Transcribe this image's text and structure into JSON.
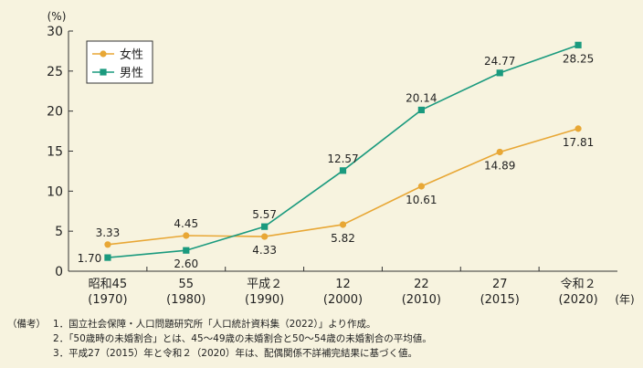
{
  "chart_data": {
    "type": "line",
    "y_unit": "(%)",
    "x_unit": "(年)",
    "ylim": [
      0,
      30
    ],
    "yticks": [
      0,
      5,
      10,
      15,
      20,
      25,
      30
    ],
    "grid": false,
    "legend_position": "top-left",
    "categories": [
      {
        "line1": "昭和45",
        "line2": "(1970)"
      },
      {
        "line1": "55",
        "line2": "(1980)"
      },
      {
        "line1": "平成２",
        "line2": "(1990)"
      },
      {
        "line1": "12",
        "line2": "(2000)"
      },
      {
        "line1": "22",
        "line2": "(2010)"
      },
      {
        "line1": "27",
        "line2": "(2015)"
      },
      {
        "line1": "令和２",
        "line2": "(2020)"
      }
    ],
    "series": [
      {
        "name": "女性",
        "color": "#e8a735",
        "marker": "circle",
        "values": [
          3.33,
          4.45,
          4.33,
          5.82,
          10.61,
          14.89,
          17.81
        ],
        "labels": [
          "3.33",
          "4.45",
          "4.33",
          "5.82",
          "10.61",
          "14.89",
          "17.81"
        ]
      },
      {
        "name": "男性",
        "color": "#1a9a7e",
        "marker": "square",
        "values": [
          1.7,
          2.6,
          5.57,
          12.57,
          20.14,
          24.77,
          28.25
        ],
        "labels": [
          "1.70",
          "2.60",
          "5.57",
          "12.57",
          "20.14",
          "24.77",
          "28.25"
        ]
      }
    ]
  },
  "notes": {
    "prefix": "（備考）",
    "items": [
      "1．国立社会保障・人口問題研究所「人口統計資料集（2022）」より作成。",
      "2．「50歳時の未婚割合」とは、45～49歳の未婚割合と50～54歳の未婚割合の平均値。",
      "3．平成27（2015）年と令和２（2020）年は、配偶関係不詳補完結果に基づく値。"
    ]
  }
}
